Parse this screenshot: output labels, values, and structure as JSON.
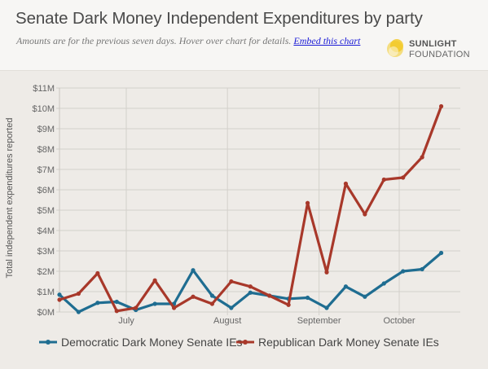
{
  "header": {
    "title": "Senate Dark Money Independent Expenditures by party",
    "subtitle": "Amounts are for the previous seven days. Hover over chart for details.",
    "embed_link": "Embed this chart",
    "logo_line1": "SUNLIGHT",
    "logo_line2": "FOUNDATION"
  },
  "colors": {
    "democratic": "#1f6d91",
    "republican": "#a8382a",
    "grid": "#d3d0cb",
    "axis_text": "#666666",
    "logo_yellow": "#f3c81f"
  },
  "chart_data": {
    "type": "line",
    "ylabel": "Total independent expenditures reported",
    "ylim": [
      0,
      11
    ],
    "yticks": [
      0,
      1,
      2,
      3,
      4,
      5,
      6,
      7,
      8,
      9,
      10,
      11
    ],
    "ytick_labels": [
      "$0M",
      "$1M",
      "$2M",
      "$3M",
      "$4M",
      "$5M",
      "$6M",
      "$7M",
      "$8M",
      "$9M",
      "$10M",
      "$11M"
    ],
    "xlim": [
      0,
      21
    ],
    "xticks": [
      3.5,
      8.8,
      13.6,
      17.8
    ],
    "xtick_labels": [
      "July",
      "August",
      "September",
      "October"
    ],
    "grid": true,
    "legend_position": "bottom",
    "x": [
      0,
      1,
      2,
      3,
      4,
      5,
      6,
      7,
      8,
      9,
      10,
      11,
      12,
      13,
      14,
      15,
      16,
      17,
      18,
      19,
      20
    ],
    "series": [
      {
        "name": "Democratic Dark Money Senate IEs",
        "color": "#1f6d91",
        "values": [
          0.85,
          0.0,
          0.45,
          0.5,
          0.1,
          0.4,
          0.4,
          2.05,
          0.8,
          0.2,
          0.95,
          0.8,
          0.65,
          0.7,
          0.2,
          1.25,
          0.75,
          1.4,
          2.0,
          2.1,
          2.9
        ]
      },
      {
        "name": "Republican Dark Money Senate IEs",
        "color": "#a8382a",
        "values": [
          0.6,
          0.9,
          1.9,
          0.05,
          0.2,
          1.55,
          0.2,
          0.75,
          0.4,
          1.5,
          1.25,
          0.8,
          0.35,
          5.35,
          1.95,
          6.3,
          4.8,
          6.5,
          6.6,
          7.6,
          10.1
        ]
      }
    ]
  }
}
